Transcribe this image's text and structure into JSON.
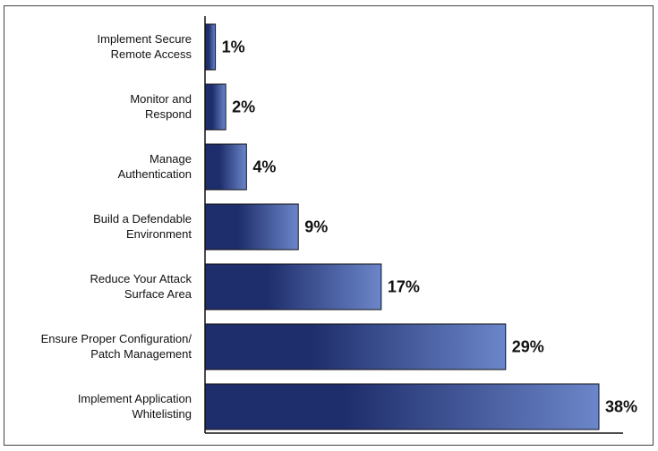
{
  "chart_data": {
    "type": "bar",
    "orientation": "horizontal",
    "title": "",
    "xlabel": "",
    "ylabel": "",
    "value_suffix": "%",
    "categories": [
      [
        "Implement Secure",
        "Remote Access"
      ],
      [
        "Monitor and",
        "Respond"
      ],
      [
        "Manage",
        "Authentication"
      ],
      [
        "Build a Defendable",
        "Environment"
      ],
      [
        "Reduce Your Attack",
        "Surface Area"
      ],
      [
        "Ensure Proper Configuration/",
        "Patch Management"
      ],
      [
        "Implement Application",
        "Whitelisting"
      ]
    ],
    "values": [
      1,
      2,
      4,
      9,
      17,
      29,
      38
    ],
    "value_labels": [
      "1%",
      "2%",
      "4%",
      "9%",
      "17%",
      "29%",
      "38%"
    ],
    "xlim": [
      0,
      38
    ],
    "grid": false,
    "legend": "none",
    "colors": {
      "bar_dark": "#1e2d6b",
      "bar_light": "#6b86c9",
      "axis": "#111111"
    }
  }
}
